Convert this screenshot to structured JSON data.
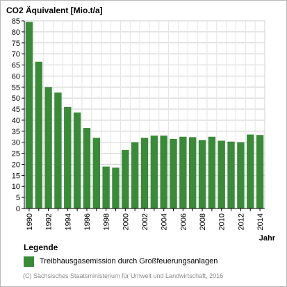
{
  "chart_data": {
    "type": "bar",
    "title": "CO2 Äquivalent [Mio.t/a]",
    "xlabel": "Jahr",
    "ylabel": "",
    "ylim": [
      0,
      85
    ],
    "y_ticks": [
      0,
      5,
      10,
      15,
      20,
      25,
      30,
      35,
      40,
      45,
      50,
      55,
      60,
      65,
      70,
      75,
      80,
      85
    ],
    "x_tick_labels": [
      "1990",
      "1992",
      "1994",
      "1996",
      "1998",
      "2000",
      "2002",
      "2004",
      "2006",
      "2008",
      "2010",
      "2012",
      "2014"
    ],
    "grid": true,
    "categories": [
      "1990",
      "1991",
      "1992",
      "1993",
      "1994",
      "1995",
      "1996",
      "1997",
      "1998",
      "1999",
      "2000",
      "2001",
      "2002",
      "2003",
      "2004",
      "2005",
      "2006",
      "2007",
      "2008",
      "2009",
      "2010",
      "2011",
      "2012",
      "2013",
      "2014"
    ],
    "series": [
      {
        "name": "Treibhausgasemission durch Großfeuerungsanlagen",
        "color": "#3a8a3a",
        "values": [
          84.5,
          66.5,
          55,
          52.5,
          46,
          43.5,
          36.5,
          32,
          19,
          18.5,
          26.5,
          30,
          32,
          33,
          33,
          31.5,
          32.5,
          32.3,
          31,
          32.5,
          30.7,
          30.3,
          30,
          33.5,
          33.3
        ]
      }
    ]
  },
  "legend": {
    "title": "Legende"
  },
  "footer": {
    "copyright": "(C) Sächsisches Staatsministerium für Umwelt und Landwirtschaft, 2016"
  }
}
